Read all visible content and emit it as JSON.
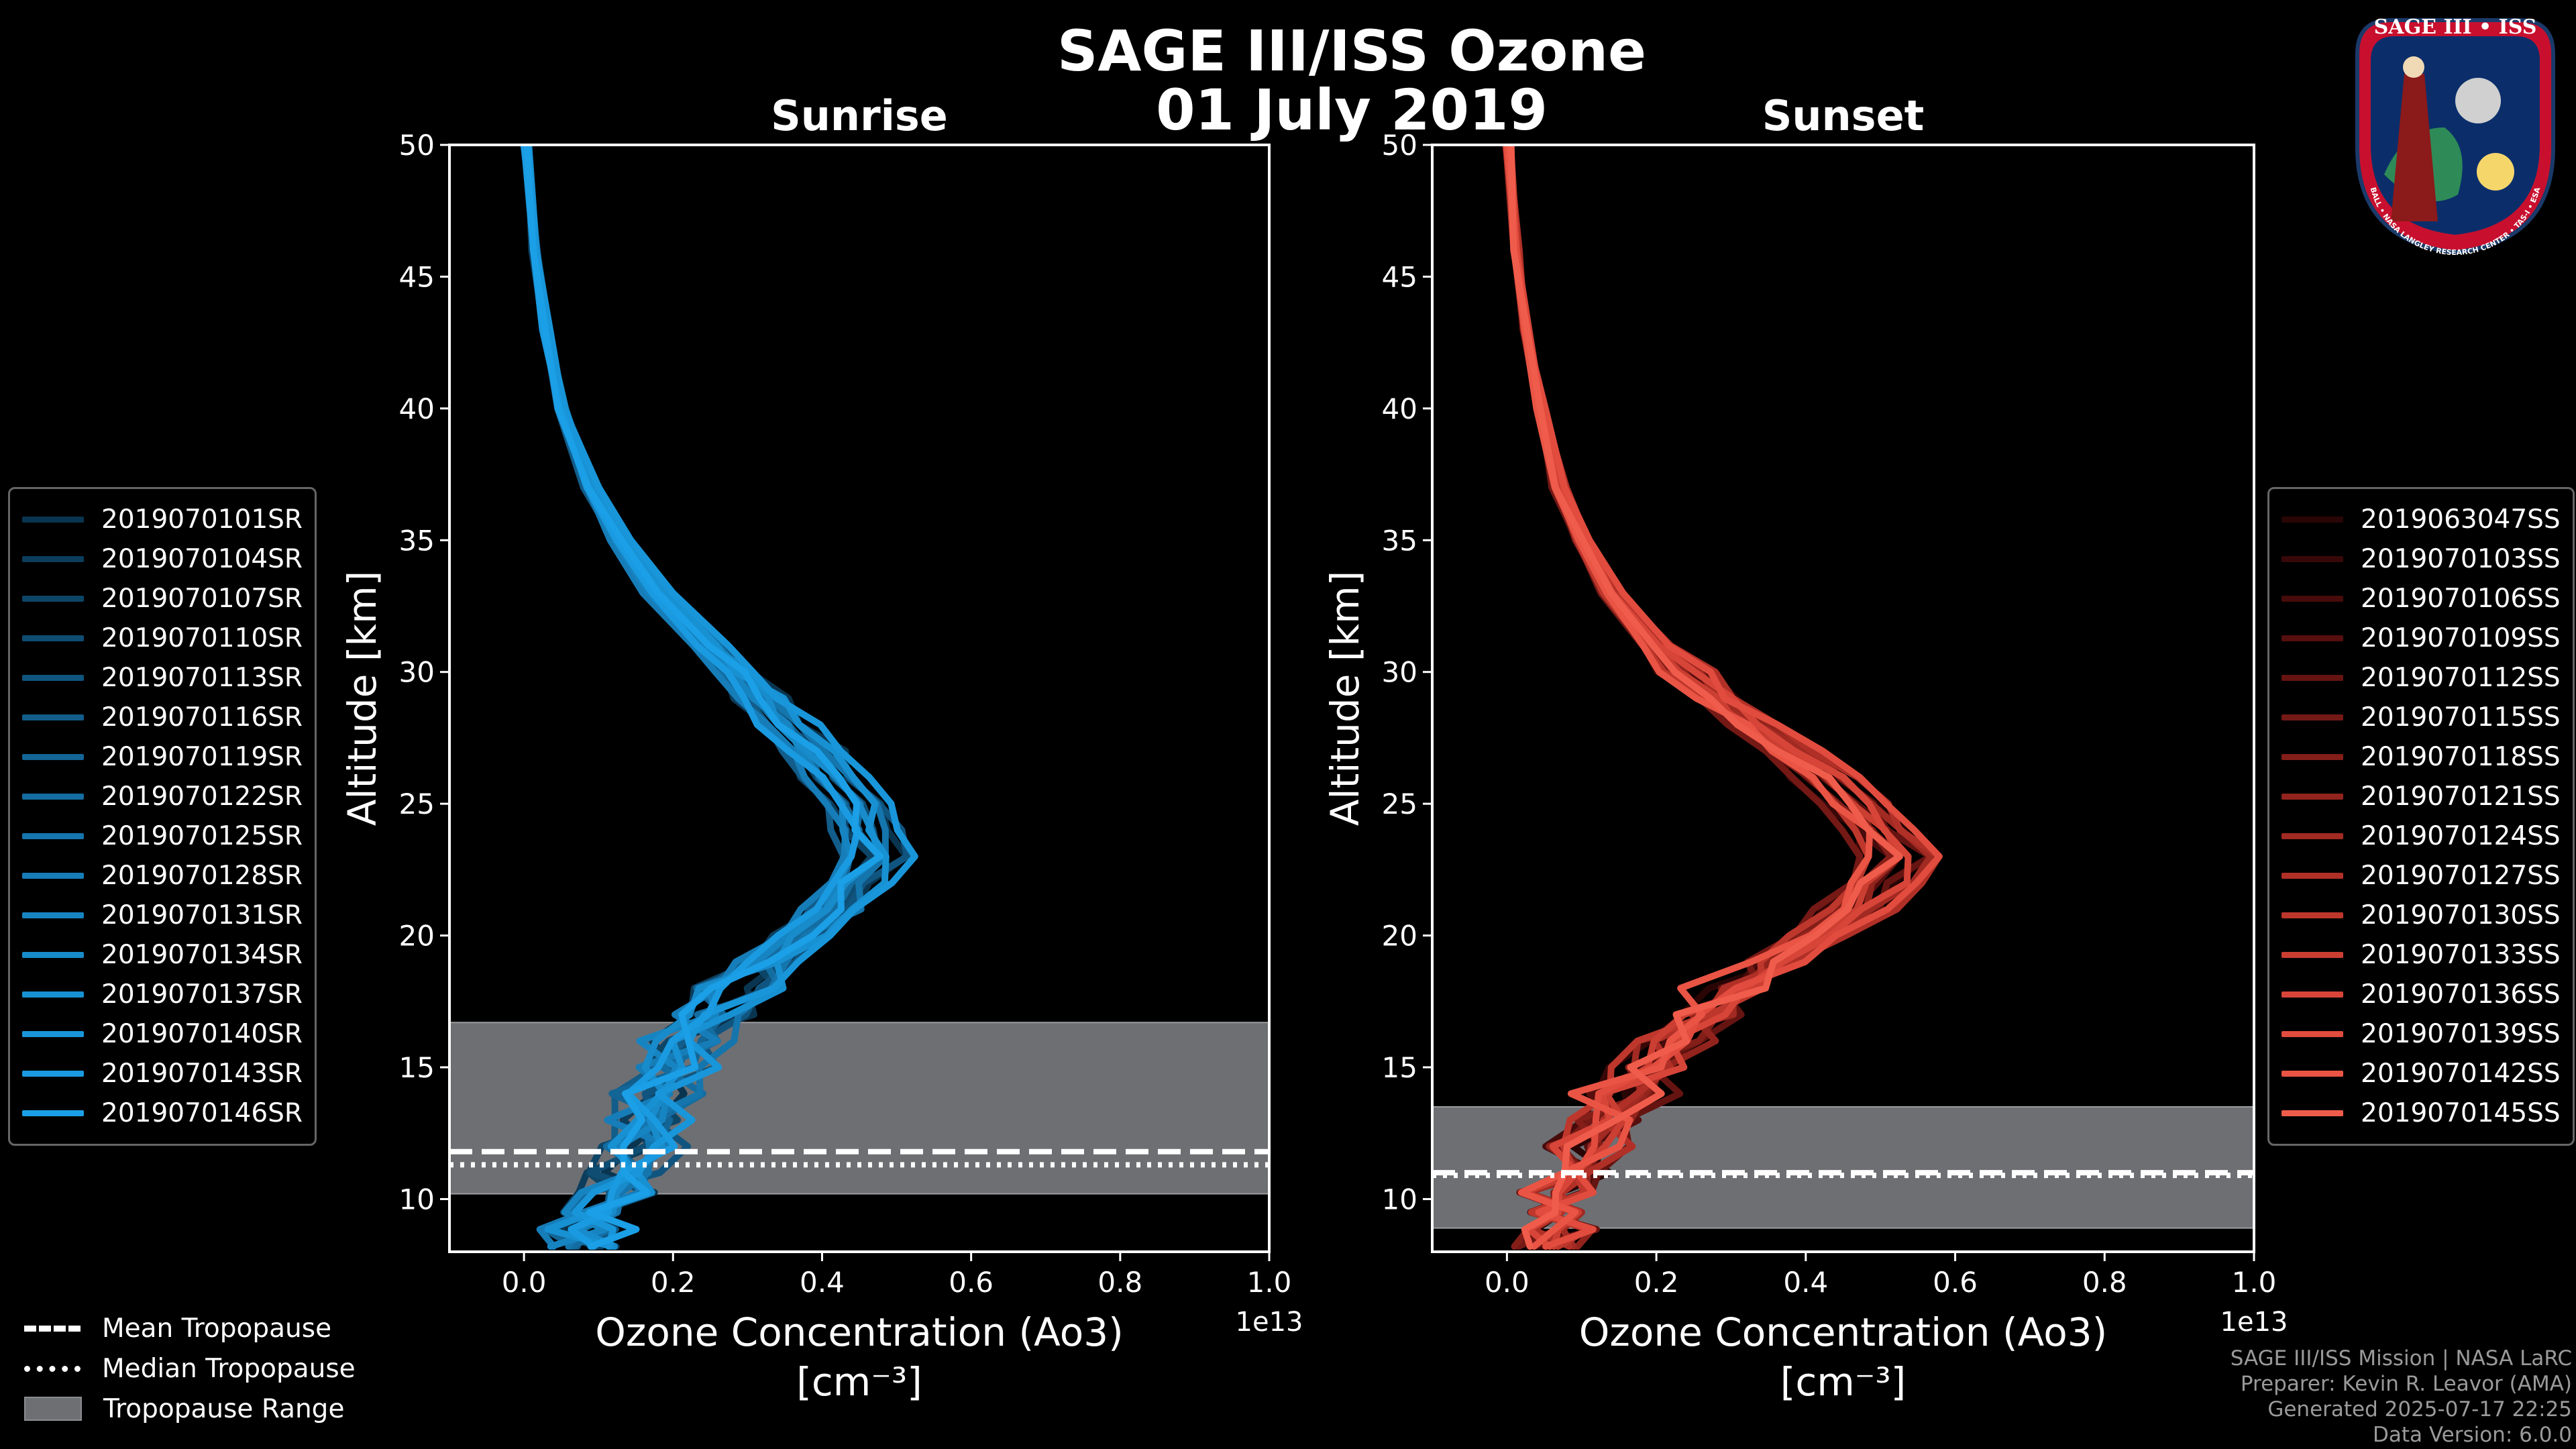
{
  "header": {
    "title_line1": "SAGE III/ISS Ozone",
    "title_line2": "01 July 2019"
  },
  "chart_data": [
    {
      "type": "line",
      "title": "Sunrise",
      "xlabel_line1": "Ozone Concentration (Ao3)",
      "xlabel_line2": "[cm⁻³]",
      "ylabel": "Altitude [km]",
      "xlim": [
        -0.1,
        1.0
      ],
      "ylim": [
        8,
        50
      ],
      "x_scale_note": "1e13",
      "x_ticks": [
        0.0,
        0.2,
        0.4,
        0.6,
        0.8,
        1.0
      ],
      "x_tick_labels": [
        "0.0",
        "0.2",
        "0.4",
        "0.6",
        "0.8",
        "1.0"
      ],
      "y_ticks": [
        10,
        15,
        20,
        25,
        30,
        35,
        40,
        45,
        50
      ],
      "y_tick_labels": [
        "10",
        "15",
        "20",
        "25",
        "30",
        "35",
        "40",
        "45",
        "50"
      ],
      "tropopause": {
        "range_min": 10.2,
        "range_max": 16.7,
        "mean": 11.8,
        "median": 11.3
      },
      "series": [
        {
          "name": "2019070101SR",
          "color": "#0a3550"
        },
        {
          "name": "2019070104SR",
          "color": "#0c3d5c"
        },
        {
          "name": "2019070107SR",
          "color": "#0d4567"
        },
        {
          "name": "2019070110SR",
          "color": "#0f4d73"
        },
        {
          "name": "2019070113SR",
          "color": "#10557f"
        },
        {
          "name": "2019070116SR",
          "color": "#125d8a"
        },
        {
          "name": "2019070119SR",
          "color": "#136596"
        },
        {
          "name": "2019070122SR",
          "color": "#146da1"
        },
        {
          "name": "2019070125SR",
          "color": "#1575ad"
        },
        {
          "name": "2019070128SR",
          "color": "#167db8"
        },
        {
          "name": "2019070131SR",
          "color": "#1784c2"
        },
        {
          "name": "2019070134SR",
          "color": "#188bcb"
        },
        {
          "name": "2019070137SR",
          "color": "#1891d3"
        },
        {
          "name": "2019070140SR",
          "color": "#1996da"
        },
        {
          "name": "2019070143SR",
          "color": "#1a9ae0"
        },
        {
          "name": "2019070146SR",
          "color": "#1b9fe6"
        }
      ],
      "profile_points": [
        {
          "alt": 8.2,
          "x": 0.08
        },
        {
          "alt": 9.5,
          "x": 0.1
        },
        {
          "alt": 11,
          "x": 0.13
        },
        {
          "alt": 13,
          "x": 0.17
        },
        {
          "alt": 15,
          "x": 0.2
        },
        {
          "alt": 17,
          "x": 0.25
        },
        {
          "alt": 19,
          "x": 0.33
        },
        {
          "alt": 21,
          "x": 0.42
        },
        {
          "alt": 23,
          "x": 0.47
        },
        {
          "alt": 25,
          "x": 0.45
        },
        {
          "alt": 27,
          "x": 0.39
        },
        {
          "alt": 29,
          "x": 0.32
        },
        {
          "alt": 31,
          "x": 0.25
        },
        {
          "alt": 33,
          "x": 0.18
        },
        {
          "alt": 35,
          "x": 0.13
        },
        {
          "alt": 37,
          "x": 0.09
        },
        {
          "alt": 40,
          "x": 0.05
        },
        {
          "alt": 43,
          "x": 0.03
        },
        {
          "alt": 46,
          "x": 0.015
        },
        {
          "alt": 50,
          "x": 0.003
        }
      ]
    },
    {
      "type": "line",
      "title": "Sunset",
      "xlabel_line1": "Ozone Concentration (Ao3)",
      "xlabel_line2": "[cm⁻³]",
      "ylabel": "Altitude [km]",
      "xlim": [
        -0.1,
        1.0
      ],
      "ylim": [
        8,
        50
      ],
      "x_scale_note": "1e13",
      "x_ticks": [
        0.0,
        0.2,
        0.4,
        0.6,
        0.8,
        1.0
      ],
      "x_tick_labels": [
        "0.0",
        "0.2",
        "0.4",
        "0.6",
        "0.8",
        "1.0"
      ],
      "y_ticks": [
        10,
        15,
        20,
        25,
        30,
        35,
        40,
        45,
        50
      ],
      "y_tick_labels": [
        "10",
        "15",
        "20",
        "25",
        "30",
        "35",
        "40",
        "45",
        "50"
      ],
      "tropopause": {
        "range_min": 8.9,
        "range_max": 13.5,
        "mean": 11.0,
        "median": 10.9
      },
      "series": [
        {
          "name": "2019063047SS",
          "color": "#2a0505"
        },
        {
          "name": "2019070103SS",
          "color": "#380808"
        },
        {
          "name": "2019070106SS",
          "color": "#470b0b"
        },
        {
          "name": "2019070109SS",
          "color": "#560f0e"
        },
        {
          "name": "2019070112SS",
          "color": "#651411"
        },
        {
          "name": "2019070115SS",
          "color": "#741915"
        },
        {
          "name": "2019070118SS",
          "color": "#831e19"
        },
        {
          "name": "2019070121SS",
          "color": "#92241d"
        },
        {
          "name": "2019070124SS",
          "color": "#a12a22"
        },
        {
          "name": "2019070127SS",
          "color": "#b03027"
        },
        {
          "name": "2019070130SS",
          "color": "#be372c"
        },
        {
          "name": "2019070133SS",
          "color": "#cb3e32"
        },
        {
          "name": "2019070136SS",
          "color": "#d74538"
        },
        {
          "name": "2019070139SS",
          "color": "#e14c3e"
        },
        {
          "name": "2019070142SS",
          "color": "#e95444"
        },
        {
          "name": "2019070145SS",
          "color": "#f05c4b"
        }
      ],
      "profile_points": [
        {
          "alt": 8.2,
          "x": 0.05
        },
        {
          "alt": 9.5,
          "x": 0.07
        },
        {
          "alt": 11,
          "x": 0.09
        },
        {
          "alt": 13,
          "x": 0.13
        },
        {
          "alt": 15,
          "x": 0.19
        },
        {
          "alt": 17,
          "x": 0.26
        },
        {
          "alt": 19,
          "x": 0.36
        },
        {
          "alt": 21,
          "x": 0.47
        },
        {
          "alt": 23,
          "x": 0.53
        },
        {
          "alt": 25,
          "x": 0.47
        },
        {
          "alt": 27,
          "x": 0.38
        },
        {
          "alt": 29,
          "x": 0.28
        },
        {
          "alt": 31,
          "x": 0.2
        },
        {
          "alt": 33,
          "x": 0.14
        },
        {
          "alt": 35,
          "x": 0.1
        },
        {
          "alt": 37,
          "x": 0.07
        },
        {
          "alt": 40,
          "x": 0.045
        },
        {
          "alt": 43,
          "x": 0.025
        },
        {
          "alt": 46,
          "x": 0.012
        },
        {
          "alt": 50,
          "x": 0.002
        }
      ]
    }
  ],
  "tropopause_legend": {
    "mean_label": "Mean Tropopause",
    "median_label": "Median Tropopause",
    "range_label": "Tropopause Range",
    "range_color": "#6d6f73"
  },
  "footer": {
    "line1": "SAGE III/ISS Mission | NASA LaRC",
    "line2": "Preparer: Kevin R. Leavor (AMA)",
    "line3": "Generated 2025-07-17 22:25",
    "line4": "Data Version: 6.0.0"
  },
  "logo": {
    "text_top": "SAGE III • ISS",
    "text_ring": "BALL • NASA LANGLEY RESEARCH CENTER • TAS-I • ESA"
  }
}
